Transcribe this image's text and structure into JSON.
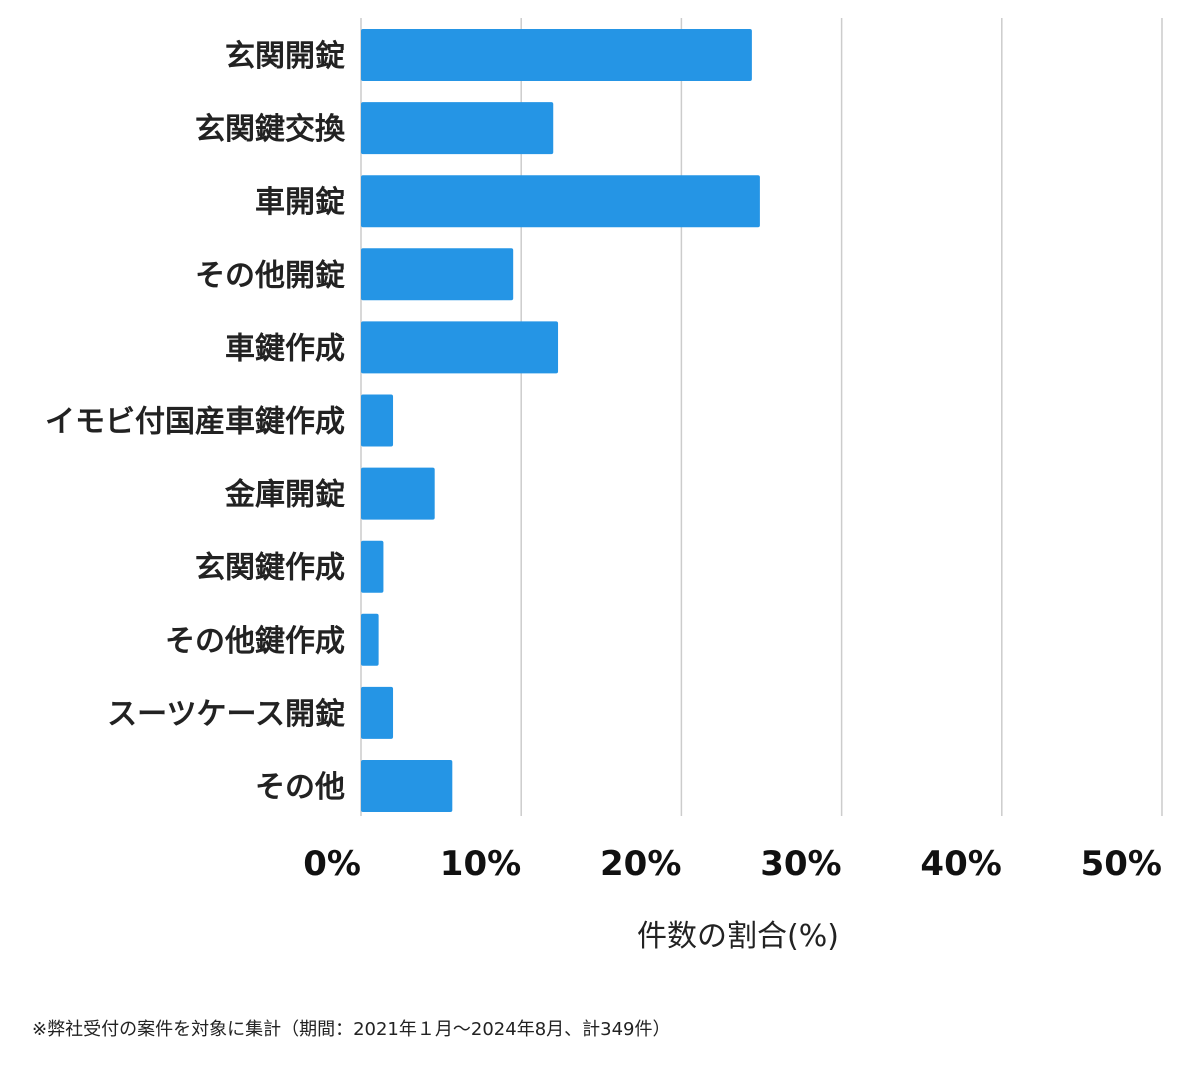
{
  "chart_data": {
    "type": "bar",
    "orientation": "horizontal",
    "categories": [
      "玄関開錠",
      "玄関鍵交換",
      "車開錠",
      "その他開錠",
      "車鍵作成",
      "イモビ付国産車鍵作成",
      "金庫開錠",
      "玄関鍵作成",
      "その他鍵作成",
      "スーツケース開錠",
      "その他"
    ],
    "values": [
      24.4,
      12.0,
      24.9,
      9.5,
      12.3,
      2.0,
      4.6,
      1.4,
      1.1,
      2.0,
      5.7
    ],
    "xlim": [
      0,
      50
    ],
    "xticks": [
      "0%",
      "10%",
      "20%",
      "30%",
      "40%",
      "50%"
    ],
    "xlabel": "件数の割合(%)",
    "ylabel": "",
    "grid": "vertical",
    "bar_color": "#2595e5",
    "grid_color": "#cccccc"
  },
  "footnote": "※弊社受付の案件を対象に集計（期間：2021年１月〜2024年8月、計349件）"
}
